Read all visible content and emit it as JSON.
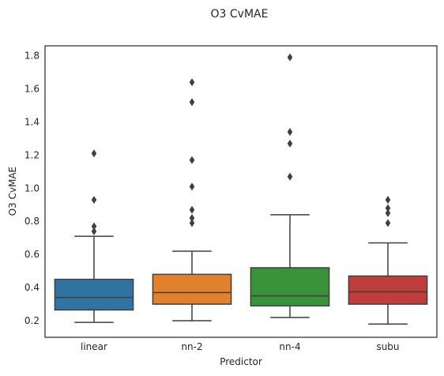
{
  "chart_data": {
    "type": "box",
    "title": "O3 CvMAE",
    "xlabel": "Predictor",
    "ylabel": "O3 CvMAE",
    "ylim": [
      0.1,
      1.86
    ],
    "yticks": [
      "0.2",
      "0.4",
      "0.6",
      "0.8",
      "1.0",
      "1.2",
      "1.4",
      "1.6",
      "1.8"
    ],
    "grid": false,
    "categories": [
      "linear",
      "nn-2",
      "nn-4",
      "subu"
    ],
    "boxes": [
      {
        "name": "linear",
        "color": "#3274a1",
        "whisker_low": 0.19,
        "q1": 0.265,
        "median": 0.34,
        "q3": 0.45,
        "whisker_high": 0.71,
        "outliers": [
          0.74,
          0.77,
          0.93,
          1.21
        ]
      },
      {
        "name": "nn-2",
        "color": "#e1812c",
        "whisker_low": 0.2,
        "q1": 0.3,
        "median": 0.37,
        "q3": 0.48,
        "whisker_high": 0.62,
        "outliers": [
          0.79,
          0.82,
          0.87,
          1.01,
          1.17,
          1.52,
          1.64
        ]
      },
      {
        "name": "nn-4",
        "color": "#3a923a",
        "whisker_low": 0.22,
        "q1": 0.29,
        "median": 0.35,
        "q3": 0.52,
        "whisker_high": 0.84,
        "outliers": [
          1.07,
          1.27,
          1.34,
          1.79
        ]
      },
      {
        "name": "subu",
        "color": "#c03d3e",
        "whisker_low": 0.18,
        "q1": 0.3,
        "median": 0.375,
        "q3": 0.47,
        "whisker_high": 0.67,
        "outliers": [
          0.79,
          0.85,
          0.88,
          0.93
        ]
      }
    ]
  }
}
